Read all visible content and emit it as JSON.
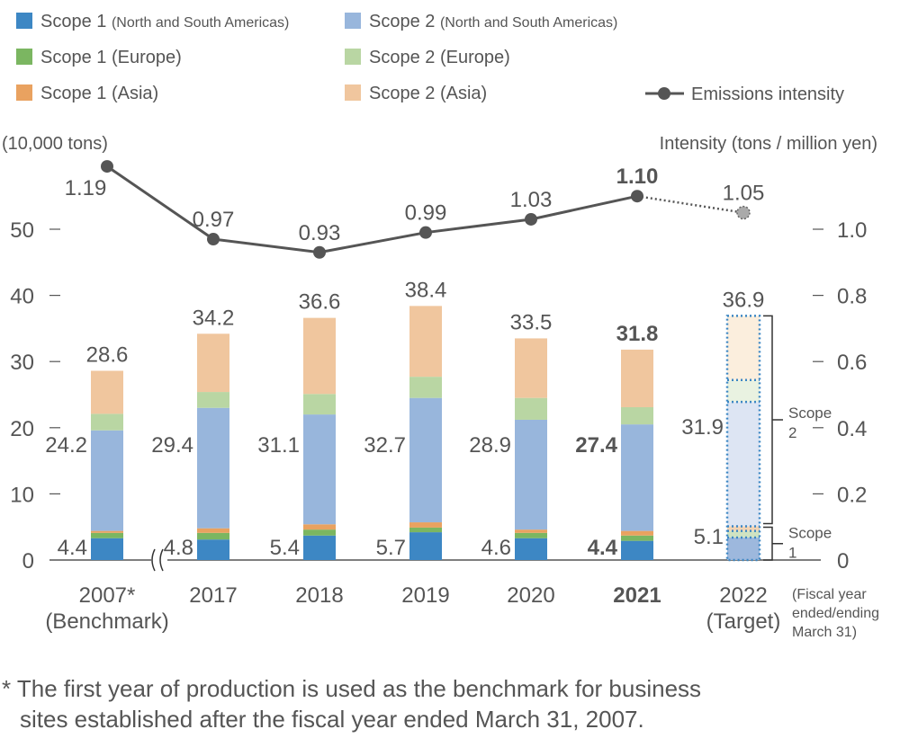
{
  "chart_data": {
    "type": "bar",
    "subtype": "stacked bar with line on secondary axis",
    "categories": [
      "2007*",
      "2017",
      "2018",
      "2019",
      "2020",
      "2021",
      "2022"
    ],
    "category_sublabels": [
      "(Benchmark)",
      "",
      "",
      "",
      "",
      "",
      "(Target)"
    ],
    "bold_category": "2021",
    "target_category": "2022",
    "x_note": [
      "(Fiscal year",
      "ended/ending",
      "March 31)"
    ],
    "ylabel_left": "(10,000 tons)",
    "ylabel_right": "Intensity (tons / million yen)",
    "ylim_left": [
      0,
      60
    ],
    "yticks_left": [
      0,
      10,
      20,
      30,
      40,
      50
    ],
    "ylim_right": [
      0,
      1.2
    ],
    "yticks_right": [
      "0",
      "0.2",
      "0.4",
      "0.6",
      "0.8",
      "1.0"
    ],
    "axis_break_after": "2007*",
    "legend": [
      {
        "label": "Scope 1",
        "sub": "(North and South Americas)",
        "color": "#3d87c4"
      },
      {
        "label": "Scope 1",
        "sub": "(Europe)",
        "color": "#7bb661"
      },
      {
        "label": "Scope 1",
        "sub": "(Asia)",
        "color": "#e9a260"
      },
      {
        "label": "Scope 2",
        "sub": "(North and South Americas)",
        "color": "#98b6dc"
      },
      {
        "label": "Scope 2",
        "sub": "(Europe)",
        "color": "#b9d6a3"
      },
      {
        "label": "Scope 2",
        "sub": "(Asia)",
        "color": "#f0c69e"
      }
    ],
    "line_legend": "Emissions intensity",
    "series": [
      {
        "name": "Scope 1 (North and South Americas)",
        "values": [
          3.3,
          3.1,
          3.7,
          4.2,
          3.3,
          2.9,
          3.4
        ]
      },
      {
        "name": "Scope 1 (Europe)",
        "values": [
          0.8,
          1.0,
          0.9,
          0.7,
          0.8,
          0.8,
          1.0
        ]
      },
      {
        "name": "Scope 1 (Asia)",
        "values": [
          0.3,
          0.7,
          0.8,
          0.8,
          0.5,
          0.7,
          0.7
        ]
      },
      {
        "name": "Scope 2 (North and South Americas)",
        "values": [
          15.2,
          18.2,
          16.6,
          18.8,
          16.6,
          16.1,
          18.8
        ]
      },
      {
        "name": "Scope 2 (Europe)",
        "values": [
          2.5,
          2.4,
          3.1,
          3.2,
          3.3,
          2.6,
          3.3
        ]
      },
      {
        "name": "Scope 2 (Asia)",
        "values": [
          6.5,
          8.8,
          11.5,
          10.7,
          9.0,
          8.7,
          9.7
        ]
      }
    ],
    "totals": [
      "28.6",
      "34.2",
      "36.6",
      "38.4",
      "33.5",
      "31.8",
      "36.9"
    ],
    "scope2_totals": [
      "24.2",
      "29.4",
      "31.1",
      "32.7",
      "28.9",
      "27.4",
      "31.9"
    ],
    "scope1_totals": [
      "4.4",
      "4.8",
      "5.4",
      "5.7",
      "4.6",
      "4.4",
      "5.1"
    ],
    "intensity": {
      "name": "Emissions intensity",
      "values": [
        1.19,
        0.97,
        0.93,
        0.99,
        1.03,
        1.1,
        1.05
      ],
      "labels": [
        "1.19",
        "0.97",
        "0.93",
        "0.99",
        "1.03",
        "1.10",
        "1.05"
      ],
      "color": "#555555"
    },
    "brackets": [
      {
        "label": [
          "Scope",
          "2"
        ]
      },
      {
        "label": [
          "Scope",
          "1"
        ]
      }
    ],
    "target_fill_colors": [
      "#9db8dd",
      "#cfe3c2",
      "#f3d3b3",
      "#dde5f3",
      "#e9f2e1",
      "#fbeedd"
    ],
    "target_border_color": "#3d87c4"
  },
  "footnote": [
    "* The first year of production is used as the benchmark for business",
    "sites established after the fiscal year ended March 31, 2007."
  ]
}
